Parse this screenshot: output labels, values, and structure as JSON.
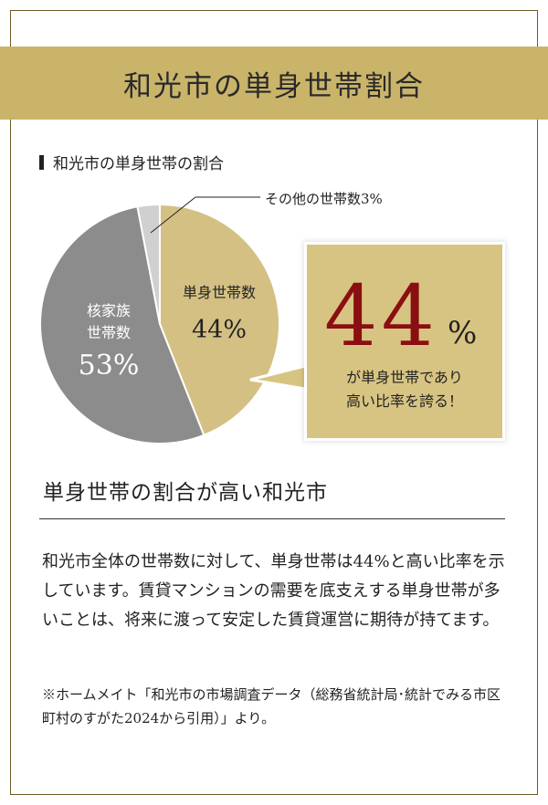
{
  "banner": {
    "title": "和光市の単身世帯割合"
  },
  "chart_label": "和光市の単身世帯の割合",
  "chart_data": {
    "type": "pie",
    "title": "和光市の単身世帯の割合",
    "slices": [
      {
        "label_lines": [
          "単身世帯数"
        ],
        "value": 44,
        "value_label": "44%",
        "color": "#d4c083"
      },
      {
        "label_lines": [
          "核家族",
          "世帯数"
        ],
        "value": 53,
        "value_label": "53%",
        "color": "#8c8c8c"
      },
      {
        "label": "その他の世帯数3%",
        "value": 3,
        "color": "#d0d0d0"
      }
    ]
  },
  "callout": {
    "big_number": "44",
    "percent_sign": "%",
    "line1": "が単身世帯であり",
    "line2": "高い比率を誇る！"
  },
  "heading": "単身世帯の割合が高い和光市",
  "body": "和光市全体の世帯数に対して、単身世帯は44%と高い比率を示しています。賃貸マンションの需要を底支えする単身世帯が多いことは、将来に渡って安定した賃貸運営に期待が持てます。",
  "footnote": "※ホームメイト「和光市の市場調査データ（総務省統計局･統計でみる市区町村のすがた2024から引用）」より。"
}
